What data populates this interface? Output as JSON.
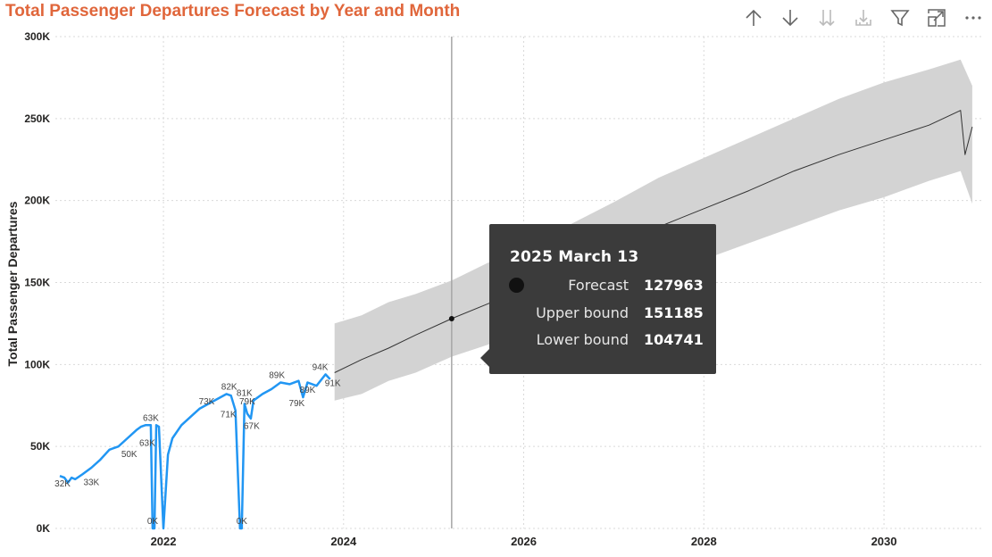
{
  "title": "Total Passenger Departures Forecast by Year and Month",
  "colors": {
    "title": "#e0663b",
    "actual": "#2196f3",
    "forecast": "#333333",
    "band": "#d3d3d3",
    "grid": "#d9d9d9",
    "cursor": "#a6a6a6",
    "icon": "#666666",
    "icon_disabled": "#bbbbbb"
  },
  "toolbar": {
    "icons": [
      "arrow-up-icon",
      "arrow-down-icon",
      "expand-all-down-icon",
      "drill-down-icon",
      "filter-icon",
      "focus-mode-icon",
      "more-options-icon"
    ]
  },
  "tooltip": {
    "title": "2025 March 13",
    "rows": [
      {
        "label": "Forecast",
        "value": "127963"
      },
      {
        "label": "Upper bound",
        "value": "151185"
      },
      {
        "label": "Lower bound",
        "value": "104741"
      }
    ]
  },
  "chart_data": {
    "type": "line",
    "title": "Total Passenger Departures Forecast by Year and Month",
    "xlabel": "",
    "ylabel": "Total Passenger Departures",
    "xlim": [
      2020.8,
      2031.1
    ],
    "ylim": [
      0,
      300000
    ],
    "x_ticks": [
      2022,
      2024,
      2026,
      2028,
      2030
    ],
    "y_ticks": [
      {
        "value": 0,
        "label": "0K"
      },
      {
        "value": 50000,
        "label": "50K"
      },
      {
        "value": 100000,
        "label": "100K"
      },
      {
        "value": 150000,
        "label": "150K"
      },
      {
        "value": 200000,
        "label": "200K"
      },
      {
        "value": 250000,
        "label": "250K"
      },
      {
        "value": 300000,
        "label": "300K"
      }
    ],
    "grid": true,
    "cursor_x": 2025.2,
    "series": [
      {
        "key": "actual",
        "x": [
          2020.85,
          2020.9,
          2020.94,
          2020.98,
          2021.02,
          2021.1,
          2021.2,
          2021.3,
          2021.4,
          2021.5,
          2021.6,
          2021.7,
          2021.75,
          2021.8,
          2021.86,
          2021.88,
          2021.9,
          2021.92,
          2021.95,
          2022.0,
          2022.05,
          2022.1,
          2022.2,
          2022.3,
          2022.4,
          2022.5,
          2022.6,
          2022.7,
          2022.75,
          2022.8,
          2022.85,
          2022.87,
          2022.9,
          2022.93,
          2022.97,
          2023.0,
          2023.1,
          2023.2,
          2023.3,
          2023.4,
          2023.5,
          2023.55,
          2023.6,
          2023.7,
          2023.8,
          2023.85
        ],
        "y": [
          32000,
          31000,
          28000,
          31000,
          30000,
          33000,
          37000,
          42000,
          48000,
          50000,
          55000,
          60000,
          62000,
          63000,
          63000,
          0,
          0,
          63000,
          62000,
          0,
          45000,
          55000,
          63000,
          68000,
          73000,
          76000,
          79000,
          82000,
          81000,
          72000,
          0,
          0,
          76000,
          70000,
          67000,
          78000,
          82000,
          85000,
          89000,
          88000,
          90000,
          80000,
          89000,
          87000,
          94000,
          91000
        ]
      },
      {
        "key": "forecast",
        "x": [
          2023.9,
          2024.2,
          2024.5,
          2024.8,
          2025.2,
          2025.6,
          2026.0,
          2026.5,
          2027.0,
          2027.5,
          2028.0,
          2028.5,
          2029.0,
          2029.5,
          2030.0,
          2030.5,
          2030.85,
          2030.9,
          2030.98
        ],
        "y": [
          95000,
          103000,
          110000,
          118000,
          127963,
          137000,
          146000,
          158000,
          171000,
          184000,
          195000,
          206000,
          218000,
          228000,
          237000,
          246000,
          255000,
          228000,
          245000
        ]
      },
      {
        "key": "upper",
        "x": [
          2023.9,
          2024.2,
          2024.5,
          2024.8,
          2025.2,
          2025.6,
          2026.0,
          2026.5,
          2027.0,
          2027.5,
          2028.0,
          2028.5,
          2029.0,
          2029.5,
          2030.0,
          2030.5,
          2030.85,
          2030.98
        ],
        "y": [
          125000,
          130000,
          138000,
          143000,
          151185,
          162000,
          172000,
          185000,
          199000,
          214000,
          226000,
          238000,
          250000,
          262000,
          272000,
          280000,
          286000,
          270000
        ]
      },
      {
        "key": "lower",
        "x": [
          2023.9,
          2024.2,
          2024.5,
          2024.8,
          2025.2,
          2025.6,
          2026.0,
          2026.5,
          2027.0,
          2027.5,
          2028.0,
          2028.5,
          2029.0,
          2029.5,
          2030.0,
          2030.5,
          2030.85,
          2030.98
        ],
        "y": [
          78000,
          82000,
          90000,
          95000,
          104741,
          112000,
          120000,
          131000,
          143000,
          155000,
          164000,
          174000,
          184000,
          194000,
          202000,
          212000,
          218000,
          198000
        ]
      }
    ],
    "data_labels": [
      {
        "x": 2020.88,
        "y": 32000,
        "text": "32K",
        "pos": "below"
      },
      {
        "x": 2021.2,
        "y": 33000,
        "text": "33K",
        "pos": "below"
      },
      {
        "x": 2021.62,
        "y": 50000,
        "text": "50K",
        "pos": "below"
      },
      {
        "x": 2021.86,
        "y": 63000,
        "text": "63K",
        "pos": "above"
      },
      {
        "x": 2021.82,
        "y": 57000,
        "text": "63K",
        "pos": "below"
      },
      {
        "x": 2021.88,
        "y": 0,
        "text": "0K",
        "pos": "above"
      },
      {
        "x": 2022.48,
        "y": 73000,
        "text": "73K",
        "pos": "above"
      },
      {
        "x": 2022.73,
        "y": 82000,
        "text": "82K",
        "pos": "above"
      },
      {
        "x": 2022.72,
        "y": 65000,
        "text": "71K",
        "pos": "above"
      },
      {
        "x": 2022.9,
        "y": 78000,
        "text": "81K",
        "pos": "above"
      },
      {
        "x": 2022.93,
        "y": 73000,
        "text": "79K",
        "pos": "above"
      },
      {
        "x": 2022.98,
        "y": 58000,
        "text": "67K",
        "pos": "above"
      },
      {
        "x": 2022.87,
        "y": 0,
        "text": "0K",
        "pos": "above"
      },
      {
        "x": 2023.26,
        "y": 89000,
        "text": "89K",
        "pos": "above"
      },
      {
        "x": 2023.6,
        "y": 80000,
        "text": "89K",
        "pos": "above"
      },
      {
        "x": 2023.48,
        "y": 72000,
        "text": "79K",
        "pos": "above"
      },
      {
        "x": 2023.74,
        "y": 94000,
        "text": "94K",
        "pos": "above"
      },
      {
        "x": 2023.88,
        "y": 84000,
        "text": "91K",
        "pos": "above"
      }
    ]
  }
}
